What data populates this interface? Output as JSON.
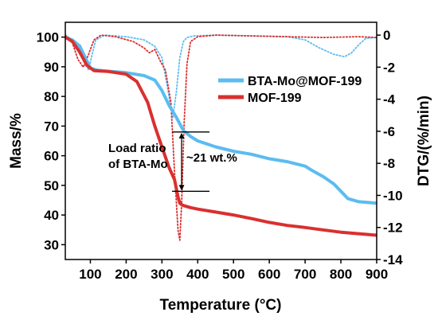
{
  "chart_data": {
    "type": "line",
    "xlabel": "Temperature (°C)",
    "ylabel_left": "Mass/%",
    "ylabel_right": "DTG/(%/min)",
    "xlim": [
      30,
      900
    ],
    "ylim_left": [
      25,
      105
    ],
    "ylim_right": [
      -14,
      0.8
    ],
    "xticks": [
      100,
      200,
      300,
      400,
      500,
      600,
      700,
      800,
      900
    ],
    "yticks_left": [
      30,
      40,
      50,
      60,
      70,
      80,
      90,
      100
    ],
    "yticks_right": [
      0,
      -2,
      -4,
      -6,
      -8,
      -10,
      -12,
      -14
    ],
    "grid": false,
    "legend_position": "center-right",
    "series": [
      {
        "name": "BTA-Mo@MOF-199",
        "axis": "left",
        "style": "solid",
        "color": "#5bbcf0",
        "x": [
          30,
          50,
          70,
          90,
          100,
          120,
          150,
          200,
          250,
          280,
          300,
          320,
          340,
          360,
          380,
          400,
          450,
          500,
          550,
          600,
          650,
          700,
          720,
          750,
          780,
          800,
          820,
          850,
          880,
          900
        ],
        "y": [
          100,
          99,
          97,
          92,
          89.5,
          88.8,
          88.5,
          88,
          87,
          85.5,
          82,
          77,
          73,
          68.5,
          66.5,
          65,
          63,
          61.5,
          60.5,
          59,
          58,
          56.5,
          55,
          53,
          50.5,
          48,
          45.5,
          44.5,
          44.2,
          44
        ]
      },
      {
        "name": "MOF-199",
        "axis": "left",
        "style": "solid",
        "color": "#d9302f",
        "x": [
          30,
          50,
          70,
          90,
          110,
          150,
          200,
          230,
          260,
          280,
          300,
          320,
          335,
          345,
          350,
          355,
          360,
          380,
          400,
          450,
          500,
          550,
          600,
          650,
          700,
          750,
          800,
          850,
          900
        ],
        "y": [
          100,
          98.5,
          95,
          90.5,
          88.7,
          88.4,
          87.5,
          85,
          78,
          70,
          63,
          56,
          52,
          46,
          44,
          43.5,
          43.2,
          42.5,
          42,
          41,
          40,
          38.8,
          37.5,
          36.5,
          35.8,
          35,
          34.2,
          33.7,
          33.2
        ]
      },
      {
        "name": "",
        "axis": "right",
        "style": "dotted",
        "color": "#5bbcf0",
        "x": [
          30,
          50,
          70,
          85,
          95,
          105,
          115,
          140,
          200,
          250,
          280,
          300,
          315,
          330,
          340,
          350,
          360,
          370,
          390,
          450,
          550,
          650,
          700,
          740,
          780,
          810,
          830,
          850,
          870,
          900
        ],
        "y": [
          0,
          -0.3,
          -0.8,
          -1.5,
          -2.2,
          -1.2,
          -0.3,
          0,
          -0.1,
          -0.3,
          -0.7,
          -1.4,
          -3.2,
          -5.2,
          -3.6,
          -1.4,
          -0.4,
          -0.15,
          -0.05,
          0,
          -0.05,
          -0.1,
          -0.3,
          -0.8,
          -1.2,
          -1.35,
          -1.1,
          -0.6,
          -0.2,
          -0.15
        ]
      },
      {
        "name": "",
        "axis": "right",
        "style": "dotted",
        "color": "#d9302f",
        "x": [
          30,
          50,
          65,
          80,
          95,
          110,
          130,
          170,
          220,
          250,
          265,
          280,
          295,
          310,
          325,
          335,
          345,
          350,
          355,
          362,
          370,
          380,
          400,
          450,
          550,
          650,
          750,
          850,
          900
        ],
        "y": [
          0,
          -0.5,
          -1.5,
          -2.0,
          -1.2,
          -0.3,
          0,
          -0.1,
          -0.4,
          -0.8,
          -1.1,
          -0.9,
          -1.6,
          -2.2,
          -4.2,
          -8.5,
          -12.2,
          -12.8,
          -10.5,
          -5.5,
          -1.8,
          -0.4,
          -0.1,
          0,
          -0.05,
          -0.1,
          -0.15,
          -0.1,
          -0.15
        ]
      }
    ],
    "annotation": {
      "label_line1": "Load ratio",
      "label_line2": "of BTA-Mo",
      "value_label": "~21 wt.%",
      "x": 355,
      "y_top": 68,
      "y_bottom": 48
    }
  }
}
